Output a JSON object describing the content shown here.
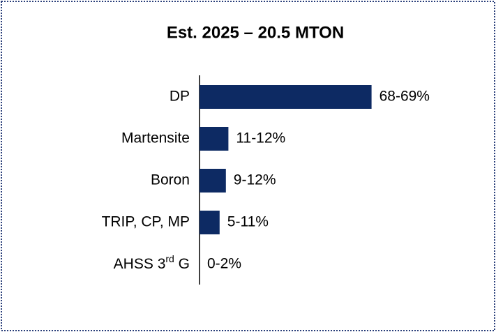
{
  "chart_data": {
    "type": "bar",
    "orientation": "horizontal",
    "title": "Est. 2025 – 20.5 MTON",
    "categories": [
      "DP",
      "Martensite",
      "Boron",
      "TRIP, CP, MP",
      "AHSS 3rd G"
    ],
    "values": [
      68.5,
      11.5,
      10.5,
      8,
      0
    ],
    "value_labels": [
      "68-69%",
      "11-12%",
      "9-12%",
      "5-11%",
      "0-2%"
    ],
    "color": "#0d2a63"
  }
}
